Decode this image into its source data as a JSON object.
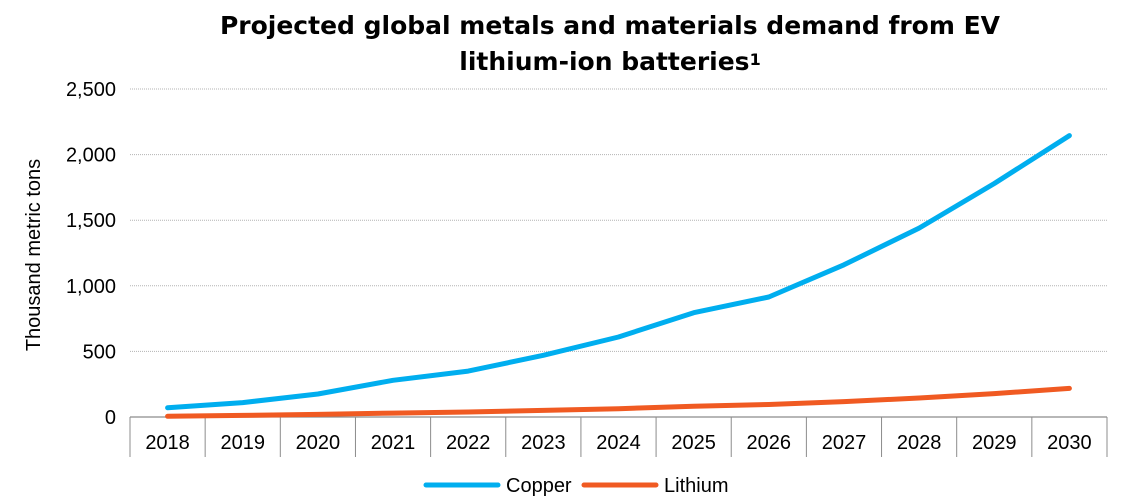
{
  "chart_data": {
    "type": "line",
    "title": "Projected global metals and materials demand from EV lithium-ion batteries",
    "title_line1": "Projected global metals and materials demand from EV",
    "title_line2": "lithium-ion batteries",
    "title_superscript": "1",
    "ylabel": "Thousand metric tons",
    "xlabel": "",
    "ylim": [
      0,
      2500
    ],
    "yticks": [
      0,
      500,
      1000,
      1500,
      2000,
      2500
    ],
    "ytick_labels": [
      "0",
      "500",
      "1,000",
      "1,500",
      "2,000",
      "2,500"
    ],
    "categories": [
      "2018",
      "2019",
      "2020",
      "2021",
      "2022",
      "2023",
      "2024",
      "2025",
      "2026",
      "2027",
      "2028",
      "2029",
      "2030"
    ],
    "grid": true,
    "legend_position": "bottom",
    "series": [
      {
        "name": "Copper",
        "color": "#00AEEF",
        "values": [
          70,
          110,
          175,
          280,
          350,
          470,
          610,
          795,
          915,
          1160,
          1440,
          1780,
          2145
        ]
      },
      {
        "name": "Lithium",
        "color": "#F05A22",
        "values": [
          5,
          12,
          20,
          30,
          38,
          50,
          63,
          82,
          95,
          117,
          145,
          178,
          218
        ]
      }
    ]
  }
}
